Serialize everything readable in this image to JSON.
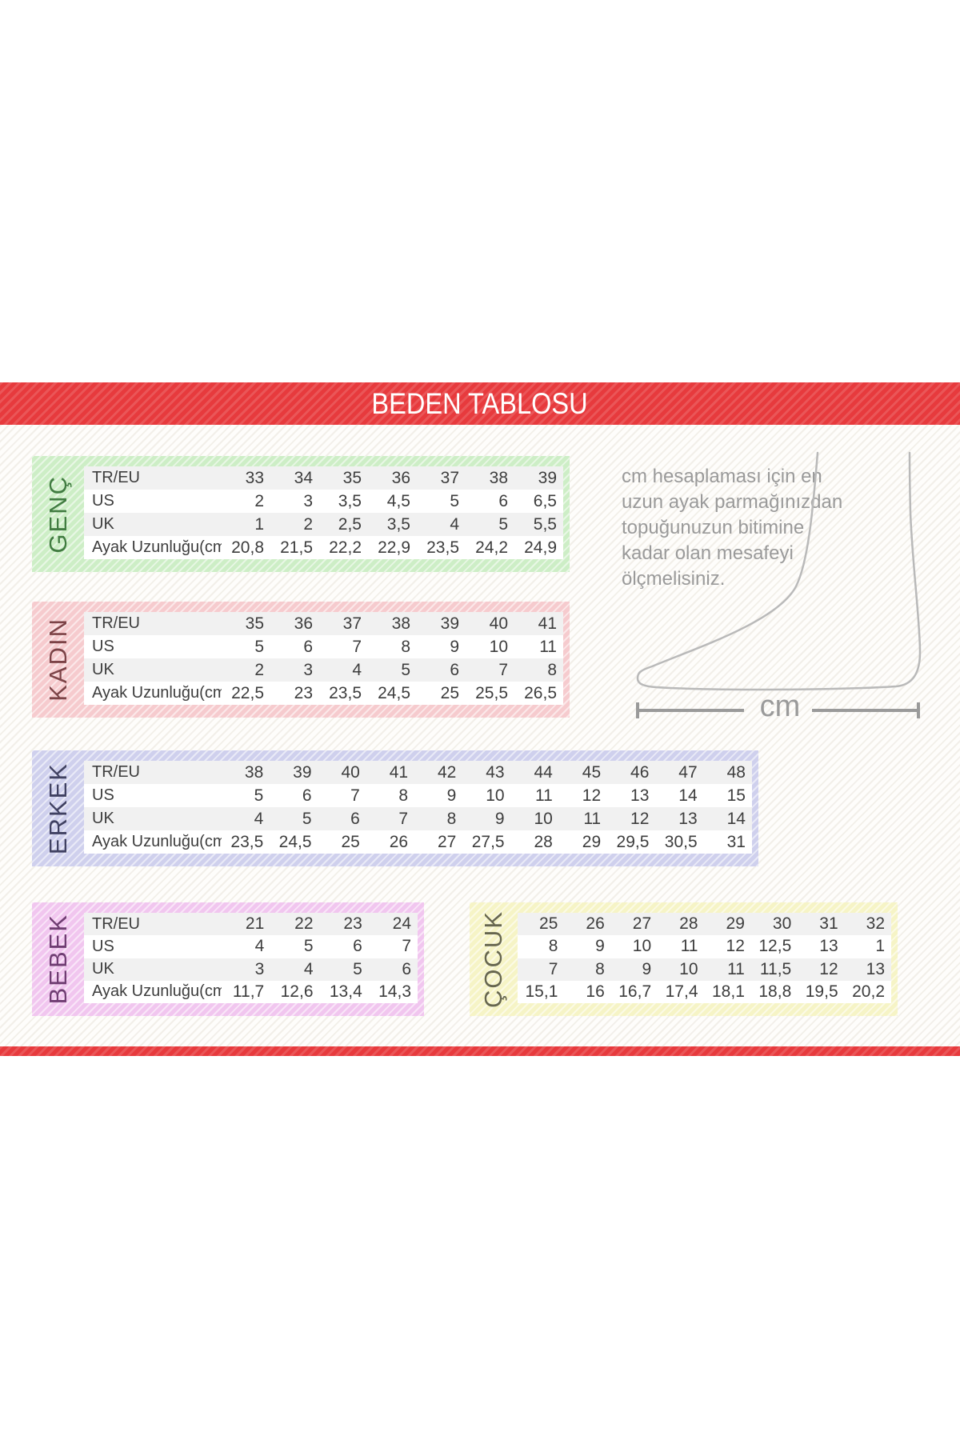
{
  "header": {
    "title": "BEDEN TABLOSU"
  },
  "row_labels": [
    "TR/EU",
    "US",
    "UK",
    "Ayak Uzunluğu(cm)"
  ],
  "tables": {
    "genc": {
      "label": "GENÇ",
      "has_row_labels": true,
      "rows": [
        [
          "33",
          "34",
          "35",
          "36",
          "37",
          "38",
          "39"
        ],
        [
          "2",
          "3",
          "3,5",
          "4,5",
          "5",
          "6",
          "6,5"
        ],
        [
          "1",
          "2",
          "2,5",
          "3,5",
          "4",
          "5",
          "5,5"
        ],
        [
          "20,8",
          "21,5",
          "22,2",
          "22,9",
          "23,5",
          "24,2",
          "24,9"
        ]
      ]
    },
    "kadin": {
      "label": "KADIN",
      "has_row_labels": true,
      "rows": [
        [
          "35",
          "36",
          "37",
          "38",
          "39",
          "40",
          "41"
        ],
        [
          "5",
          "6",
          "7",
          "8",
          "9",
          "10",
          "11"
        ],
        [
          "2",
          "3",
          "4",
          "5",
          "6",
          "7",
          "8"
        ],
        [
          "22,5",
          "23",
          "23,5",
          "24,5",
          "25",
          "25,5",
          "26,5"
        ]
      ]
    },
    "erkek": {
      "label": "ERKEK",
      "has_row_labels": true,
      "rows": [
        [
          "38",
          "39",
          "40",
          "41",
          "42",
          "43",
          "44",
          "45",
          "46",
          "47",
          "48"
        ],
        [
          "5",
          "6",
          "7",
          "8",
          "9",
          "10",
          "11",
          "12",
          "13",
          "14",
          "15"
        ],
        [
          "4",
          "5",
          "6",
          "7",
          "8",
          "9",
          "10",
          "11",
          "12",
          "13",
          "14"
        ],
        [
          "23,5",
          "24,5",
          "25",
          "26",
          "27",
          "27,5",
          "28",
          "29",
          "29,5",
          "30,5",
          "31"
        ]
      ]
    },
    "bebek": {
      "label": "BEBEK",
      "has_row_labels": true,
      "rows": [
        [
          "21",
          "22",
          "23",
          "24"
        ],
        [
          "4",
          "5",
          "6",
          "7"
        ],
        [
          "3",
          "4",
          "5",
          "6"
        ],
        [
          "11,7",
          "12,6",
          "13,4",
          "14,3"
        ]
      ]
    },
    "cocuk": {
      "label": "ÇOCUK",
      "has_row_labels": false,
      "rows": [
        [
          "25",
          "26",
          "27",
          "28",
          "29",
          "30",
          "31",
          "32"
        ],
        [
          "8",
          "9",
          "10",
          "11",
          "12",
          "12,5",
          "13",
          "1"
        ],
        [
          "7",
          "8",
          "9",
          "10",
          "11",
          "11,5",
          "12",
          "13"
        ],
        [
          "15,1",
          "16",
          "16,7",
          "17,4",
          "18,1",
          "18,8",
          "19,5",
          "20,2"
        ]
      ]
    }
  },
  "note": {
    "lines": [
      "cm hesaplaması için en",
      "uzun ayak parmağınızdan",
      "topuğunuzun bitimine",
      "kadar olan mesafeyi",
      "ölçmelisiniz."
    ]
  },
  "measure": {
    "unit": "cm"
  },
  "colors": {
    "accent_red": "#e73a3d",
    "genc_bg": "#cdeec6",
    "genc_text": "#417c41",
    "kadin_bg": "#f6cbce",
    "kadin_text": "#7c4347",
    "erkek_bg": "#cfd0ed",
    "erkek_text": "#404161",
    "bebek_bg": "#f1c6ef",
    "bebek_text": "#6f3d72",
    "cocuk_bg": "#f6f4c6",
    "cocuk_text": "#66664f"
  }
}
